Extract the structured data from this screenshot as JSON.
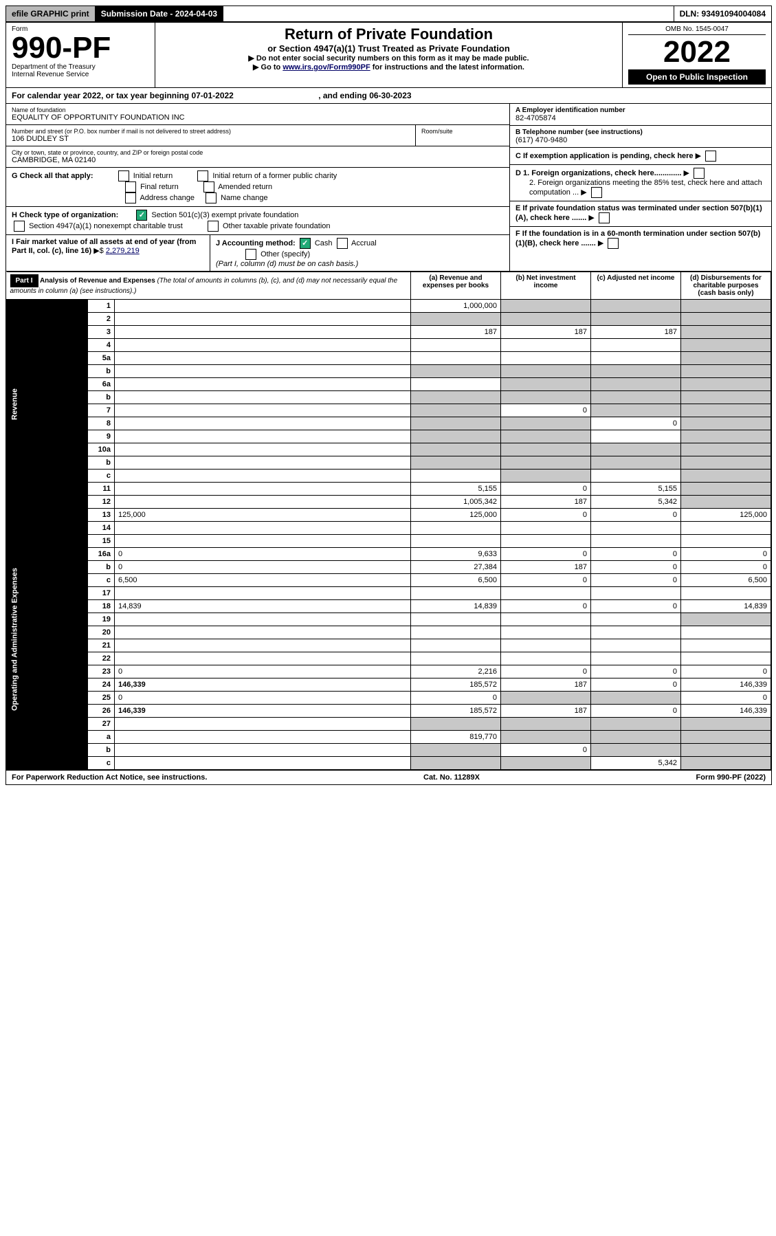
{
  "top": {
    "efile": "efile GRAPHIC print",
    "submission": "Submission Date - 2024-04-03",
    "dln": "DLN: 93491094004084"
  },
  "header": {
    "form_label": "Form",
    "form_num": "990-PF",
    "dept": "Department of the Treasury",
    "irs": "Internal Revenue Service",
    "title": "Return of Private Foundation",
    "subtitle": "or Section 4947(a)(1) Trust Treated as Private Foundation",
    "instr1": "▶ Do not enter social security numbers on this form as it may be made public.",
    "instr2a": "▶ Go to ",
    "instr2b": "www.irs.gov/Form990PF",
    "instr2c": " for instructions and the latest information.",
    "omb": "OMB No. 1545-0047",
    "year": "2022",
    "open_pub": "Open to Public Inspection"
  },
  "cal_year": {
    "prefix": "For calendar year 2022, or tax year beginning ",
    "begin": "07-01-2022",
    "mid": " , and ending ",
    "end": "06-30-2023"
  },
  "info": {
    "name_label": "Name of foundation",
    "name": "EQUALITY OF OPPORTUNITY FOUNDATION INC",
    "addr_label": "Number and street (or P.O. box number if mail is not delivered to street address)",
    "addr": "106 DUDLEY ST",
    "room_label": "Room/suite",
    "city_label": "City or town, state or province, country, and ZIP or foreign postal code",
    "city": "CAMBRIDGE, MA  02140",
    "ein_label": "A Employer identification number",
    "ein": "82-4705874",
    "phone_label": "B Telephone number (see instructions)",
    "phone": "(617) 470-9480",
    "c_label": "C If exemption application is pending, check here",
    "d1": "D 1. Foreign organizations, check here.............",
    "d2": "2. Foreign organizations meeting the 85% test, check here and attach computation ...",
    "e": "E  If private foundation status was terminated under section 507(b)(1)(A), check here .......",
    "f": "F  If the foundation is in a 60-month termination under section 507(b)(1)(B), check here .......",
    "g_label": "G Check all that apply:",
    "g_initial": "Initial return",
    "g_initial_former": "Initial return of a former public charity",
    "g_final": "Final return",
    "g_amended": "Amended return",
    "g_addr": "Address change",
    "g_name": "Name change",
    "h_label": "H Check type of organization:",
    "h_501c3": "Section 501(c)(3) exempt private foundation",
    "h_4947": "Section 4947(a)(1) nonexempt charitable trust",
    "h_other": "Other taxable private foundation",
    "i_label": "I Fair market value of all assets at end of year (from Part II, col. (c), line 16)",
    "i_value": "2,279,219",
    "j_label": "J Accounting method:",
    "j_cash": "Cash",
    "j_accrual": "Accrual",
    "j_other": "Other (specify)",
    "j_note": "(Part I, column (d) must be on cash basis.)"
  },
  "part1": {
    "label": "Part I",
    "title": "Analysis of Revenue and Expenses",
    "note": " (The total of amounts in columns (b), (c), and (d) may not necessarily equal the amounts in column (a) (see instructions).)",
    "col_a": "(a) Revenue and expenses per books",
    "col_b": "(b) Net investment income",
    "col_c": "(c) Adjusted net income",
    "col_d": "(d) Disbursements for charitable purposes (cash basis only)",
    "revenue_label": "Revenue",
    "expenses_label": "Operating and Administrative Expenses"
  },
  "rows": [
    {
      "n": "1",
      "d": "",
      "a": "1,000,000",
      "b": "",
      "c": "",
      "shade_b": true,
      "shade_c": true,
      "shade_d": true
    },
    {
      "n": "2",
      "d": "",
      "a": "",
      "b": "",
      "c": "",
      "shade_a": true,
      "shade_b": true,
      "shade_c": true,
      "shade_d": true,
      "bold_not": true
    },
    {
      "n": "3",
      "d": "",
      "a": "187",
      "b": "187",
      "c": "187",
      "shade_d": true
    },
    {
      "n": "4",
      "d": "",
      "a": "",
      "b": "",
      "c": "",
      "shade_d": true
    },
    {
      "n": "5a",
      "d": "",
      "a": "",
      "b": "",
      "c": "",
      "shade_d": true
    },
    {
      "n": "b",
      "d": "",
      "a": "",
      "b": "",
      "c": "",
      "shade_a": true,
      "shade_b": true,
      "shade_c": true,
      "shade_d": true
    },
    {
      "n": "6a",
      "d": "",
      "a": "",
      "b": "",
      "c": "",
      "shade_b": true,
      "shade_c": true,
      "shade_d": true
    },
    {
      "n": "b",
      "d": "",
      "a": "",
      "b": "",
      "c": "",
      "shade_a": true,
      "shade_b": true,
      "shade_c": true,
      "shade_d": true
    },
    {
      "n": "7",
      "d": "",
      "a": "",
      "b": "0",
      "c": "",
      "shade_a": true,
      "shade_c": true,
      "shade_d": true
    },
    {
      "n": "8",
      "d": "",
      "a": "",
      "b": "",
      "c": "0",
      "shade_a": true,
      "shade_b": true,
      "shade_d": true
    },
    {
      "n": "9",
      "d": "",
      "a": "",
      "b": "",
      "c": "",
      "shade_a": true,
      "shade_b": true,
      "shade_d": true
    },
    {
      "n": "10a",
      "d": "",
      "a": "",
      "b": "",
      "c": "",
      "shade_a": true,
      "shade_b": true,
      "shade_c": true,
      "shade_d": true
    },
    {
      "n": "b",
      "d": "",
      "a": "",
      "b": "",
      "c": "",
      "shade_a": true,
      "shade_b": true,
      "shade_c": true,
      "shade_d": true
    },
    {
      "n": "c",
      "d": "",
      "a": "",
      "b": "",
      "c": "",
      "shade_b": true,
      "shade_d": true
    },
    {
      "n": "11",
      "d": "",
      "a": "5,155",
      "b": "0",
      "c": "5,155",
      "shade_d": true
    },
    {
      "n": "12",
      "d": "",
      "a": "1,005,342",
      "b": "187",
      "c": "5,342",
      "shade_d": true,
      "bold": true
    }
  ],
  "exp_rows": [
    {
      "n": "13",
      "d": "125,000",
      "a": "125,000",
      "b": "0",
      "c": "0"
    },
    {
      "n": "14",
      "d": "",
      "a": "",
      "b": "",
      "c": ""
    },
    {
      "n": "15",
      "d": "",
      "a": "",
      "b": "",
      "c": ""
    },
    {
      "n": "16a",
      "d": "0",
      "a": "9,633",
      "b": "0",
      "c": "0"
    },
    {
      "n": "b",
      "d": "0",
      "a": "27,384",
      "b": "187",
      "c": "0"
    },
    {
      "n": "c",
      "d": "6,500",
      "a": "6,500",
      "b": "0",
      "c": "0"
    },
    {
      "n": "17",
      "d": "",
      "a": "",
      "b": "",
      "c": ""
    },
    {
      "n": "18",
      "d": "14,839",
      "a": "14,839",
      "b": "0",
      "c": "0"
    },
    {
      "n": "19",
      "d": "",
      "a": "",
      "b": "",
      "c": "",
      "shade_d": true
    },
    {
      "n": "20",
      "d": "",
      "a": "",
      "b": "",
      "c": ""
    },
    {
      "n": "21",
      "d": "",
      "a": "",
      "b": "",
      "c": ""
    },
    {
      "n": "22",
      "d": "",
      "a": "",
      "b": "",
      "c": ""
    },
    {
      "n": "23",
      "d": "0",
      "a": "2,216",
      "b": "0",
      "c": "0"
    },
    {
      "n": "24",
      "d": "146,339",
      "a": "185,572",
      "b": "187",
      "c": "0",
      "bold": true
    },
    {
      "n": "25",
      "d": "0",
      "a": "0",
      "b": "",
      "c": "",
      "shade_b": true,
      "shade_c": true
    },
    {
      "n": "26",
      "d": "146,339",
      "a": "185,572",
      "b": "187",
      "c": "0",
      "bold": true
    },
    {
      "n": "27",
      "d": "",
      "a": "",
      "b": "",
      "c": "",
      "shade_a": true,
      "shade_b": true,
      "shade_c": true,
      "shade_d": true
    },
    {
      "n": "a",
      "d": "",
      "a": "819,770",
      "b": "",
      "c": "",
      "shade_b": true,
      "shade_c": true,
      "shade_d": true,
      "bold": true
    },
    {
      "n": "b",
      "d": "",
      "a": "",
      "b": "0",
      "c": "",
      "shade_a": true,
      "shade_c": true,
      "shade_d": true,
      "bold": true
    },
    {
      "n": "c",
      "d": "",
      "a": "",
      "b": "",
      "c": "5,342",
      "shade_a": true,
      "shade_b": true,
      "shade_d": true,
      "bold": true
    }
  ],
  "footer": {
    "left": "For Paperwork Reduction Act Notice, see instructions.",
    "mid": "Cat. No. 11289X",
    "right": "Form 990-PF (2022)"
  }
}
